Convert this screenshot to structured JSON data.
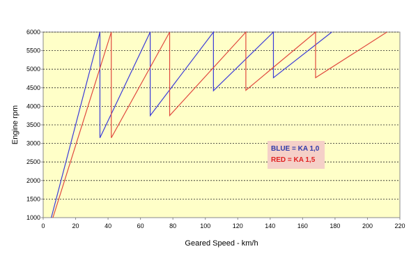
{
  "chart_data": {
    "type": "line",
    "xlabel": "Geared Speed - km/h",
    "ylabel": "Engine rpm",
    "xlim": [
      0,
      220
    ],
    "ylim": [
      1000,
      6000
    ],
    "x_ticks": [
      "0",
      "20",
      "40",
      "60",
      "80",
      "100",
      "120",
      "140",
      "160",
      "180",
      "200",
      "220"
    ],
    "y_ticks": [
      "1000",
      "1500",
      "2000",
      "2500",
      "3000",
      "3500",
      "4000",
      "4500",
      "5000",
      "5500",
      "6000"
    ],
    "grid": "horizontal dashed",
    "legend_box": {
      "placement": "right-center",
      "lines": [
        "BLUE = KA 1,0",
        "RED = KA 1,5"
      ]
    },
    "series": [
      {
        "color": "#3a3ad8",
        "x": [
          5,
          35,
          35,
          66,
          66,
          105,
          105,
          142,
          142,
          178
        ],
        "y": [
          1000,
          6000,
          3150,
          6000,
          3750,
          6000,
          4420,
          6000,
          4770,
          6000
        ]
      },
      {
        "color": "#e0483e",
        "x": [
          6,
          42,
          42,
          78,
          78,
          125,
          125,
          168,
          168,
          212
        ],
        "y": [
          1000,
          6000,
          3150,
          6000,
          3750,
          6000,
          4430,
          6000,
          4770,
          6000
        ]
      }
    ],
    "colors": {
      "plot_bg": "#ffffc8",
      "grid": "#222222",
      "legend_bg": "#f5d0c8",
      "legend_blue": "#2f3aa8",
      "legend_red": "#e02020"
    }
  }
}
